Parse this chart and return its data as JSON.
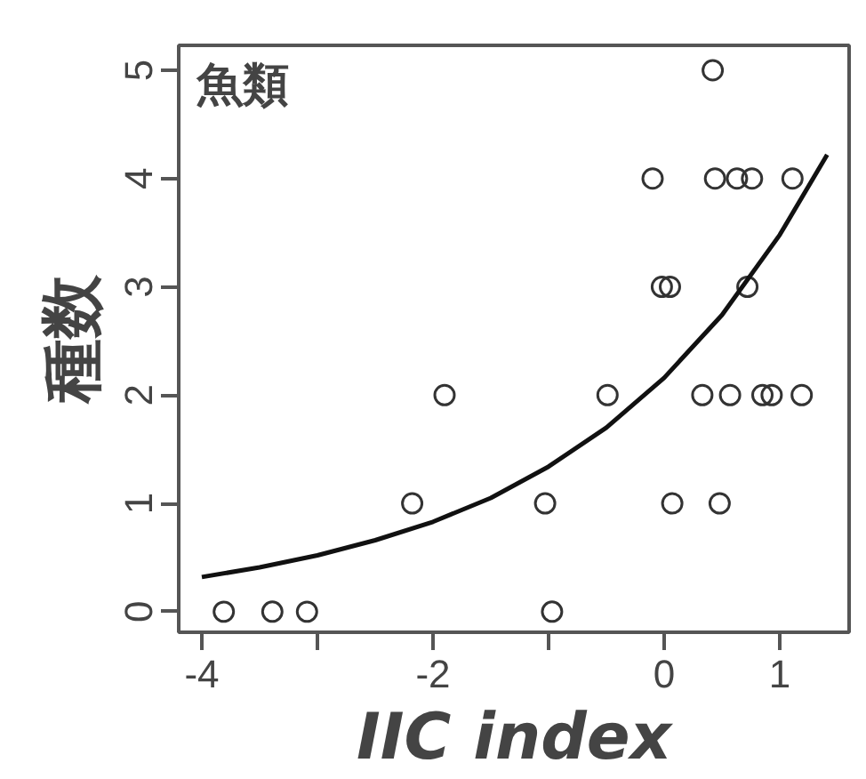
{
  "chart_data": {
    "type": "scatter",
    "xlabel": "IIC index",
    "ylabel": "種数",
    "annotations": [
      "魚類"
    ],
    "xlim": [
      -4.2,
      1.6
    ],
    "ylim": [
      -0.19,
      5.23
    ],
    "xticks": [
      -4,
      {
        "value": -3,
        "label": null
      },
      -2,
      {
        "value": -1,
        "label": null
      },
      0,
      1
    ],
    "yticks": [
      0,
      1,
      2,
      3,
      4,
      5
    ],
    "grid": false,
    "series": [
      {
        "marker": "circle",
        "color": "#333333",
        "x": [
          -3.81,
          -3.39,
          -3.09,
          -2.18,
          -1.9,
          0.42,
          -0.1,
          0.44,
          0.63,
          0.76,
          1.11,
          -0.02,
          0.05,
          0.72,
          -0.49,
          0.33,
          0.57,
          0.85,
          0.93,
          1.19,
          -1.03,
          0.07,
          0.48,
          -0.97
        ],
        "values": [
          0,
          0,
          0,
          1,
          2,
          5,
          4,
          4,
          4,
          4,
          4,
          3,
          3,
          3,
          2,
          2,
          2,
          2,
          2,
          2,
          1,
          1,
          1,
          0
        ]
      },
      {
        "type": "line",
        "color": "#111111",
        "x": [
          -4,
          -3.5,
          -3,
          -2.5,
          -2,
          -1.5,
          -1,
          -0.5,
          0,
          0.5,
          1,
          1.41
        ],
        "values": [
          0.32,
          0.41,
          0.52,
          0.66,
          0.83,
          1.05,
          1.34,
          1.7,
          2.16,
          2.74,
          3.48,
          4.22
        ]
      }
    ]
  }
}
